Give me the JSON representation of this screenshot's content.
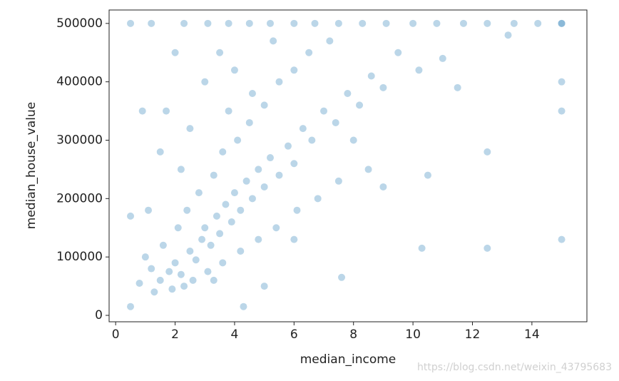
{
  "chart_data": {
    "type": "scatter",
    "x_label": "median_income",
    "y_label": "median_house_value",
    "watermark": "https://blog.csdn.net/weixin_43795683",
    "color": "#1f77b4",
    "xlim": [
      -0.22,
      15.85
    ],
    "ylim": [
      -11000,
      523000
    ],
    "xticks": [
      0,
      2,
      4,
      6,
      8,
      10,
      12,
      14
    ],
    "yticks": [
      0,
      100000,
      200000,
      300000,
      400000,
      500000
    ],
    "grid": false,
    "x": [
      0.5,
      1.2,
      2.3,
      3.1,
      3.8,
      4.5,
      5.2,
      6.0,
      6.7,
      7.5,
      8.3,
      9.1,
      10.0,
      10.8,
      11.7,
      12.5,
      13.4,
      14.2,
      15.0,
      15.0,
      1.5,
      1.8,
      2.0,
      2.2,
      2.5,
      2.7,
      2.9,
      3.0,
      3.2,
      3.4,
      3.5,
      3.7,
      3.9,
      4.0,
      4.2,
      4.4,
      4.6,
      4.8,
      5.0,
      5.2,
      5.5,
      5.8,
      6.0,
      6.3,
      6.6,
      7.0,
      7.4,
      7.8,
      8.2,
      8.6,
      9.0,
      1.2,
      1.0,
      0.8,
      1.6,
      2.1,
      2.4,
      2.8,
      3.3,
      3.6,
      4.1,
      4.5,
      5.0,
      5.5,
      6.0,
      6.5,
      7.2,
      2.6,
      3.1,
      3.6,
      4.2,
      4.8,
      5.4,
      6.1,
      6.8,
      7.5,
      8.5,
      1.3,
      1.9,
      2.3,
      1.1,
      0.9,
      1.7,
      2.0,
      3.0,
      3.5,
      4.0,
      9.5,
      10.2,
      11.0,
      10.5,
      12.5,
      12.5,
      10.3,
      15.0,
      15.0,
      15.0,
      7.6,
      4.3,
      0.5,
      0.5,
      11.5,
      13.2,
      8.0,
      9.0,
      6.0,
      5.0,
      1.5,
      2.5,
      3.8,
      4.6,
      5.3,
      3.3,
      2.2
    ],
    "values": [
      500000,
      500000,
      500000,
      500000,
      500000,
      500000,
      500000,
      500000,
      500000,
      500000,
      500000,
      500000,
      500000,
      500000,
      500000,
      500000,
      500000,
      500000,
      500000,
      500000,
      60000,
      75000,
      90000,
      70000,
      110000,
      95000,
      130000,
      150000,
      120000,
      170000,
      140000,
      190000,
      160000,
      210000,
      180000,
      230000,
      200000,
      250000,
      220000,
      270000,
      240000,
      290000,
      260000,
      320000,
      300000,
      350000,
      330000,
      380000,
      360000,
      410000,
      390000,
      80000,
      100000,
      55000,
      120000,
      150000,
      180000,
      210000,
      240000,
      280000,
      300000,
      330000,
      360000,
      400000,
      420000,
      450000,
      470000,
      60000,
      75000,
      90000,
      110000,
      130000,
      150000,
      180000,
      200000,
      230000,
      250000,
      40000,
      45000,
      50000,
      180000,
      350000,
      350000,
      450000,
      400000,
      450000,
      420000,
      450000,
      420000,
      440000,
      240000,
      280000,
      115000,
      115000,
      130000,
      350000,
      400000,
      65000,
      15000,
      15000,
      170000,
      390000,
      480000,
      300000,
      220000,
      130000,
      50000,
      280000,
      320000,
      350000,
      380000,
      470000,
      60000,
      250000
    ]
  }
}
